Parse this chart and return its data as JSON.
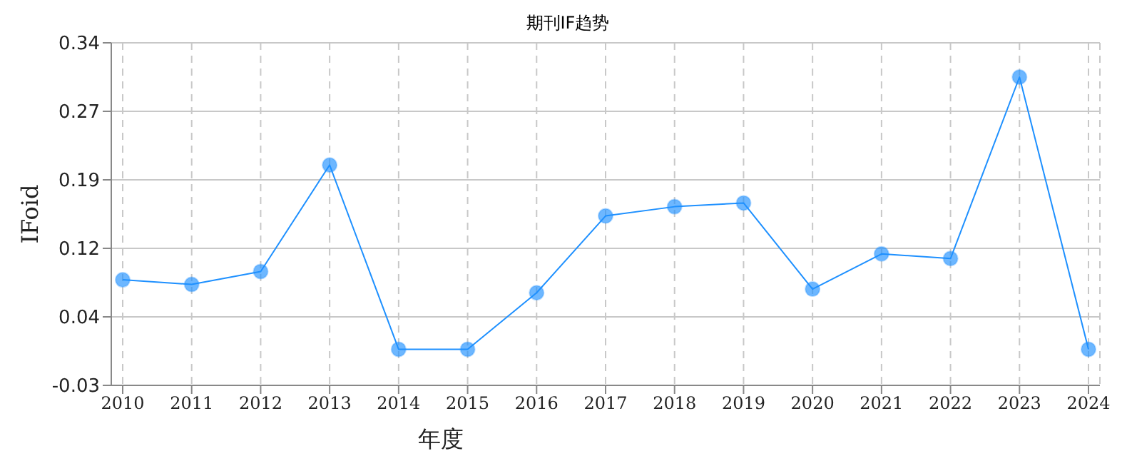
{
  "chart_data": {
    "type": "line",
    "title": "期刊IF趋势",
    "xlabel": "年度",
    "ylabel": "IFoid",
    "categories": [
      "2010",
      "2011",
      "2012",
      "2013",
      "2014",
      "2015",
      "2016",
      "2017",
      "2018",
      "2019",
      "2020",
      "2021",
      "2022",
      "2023",
      "2024"
    ],
    "series": [
      {
        "color": "#1e90ff",
        "values": [
          0.084,
          0.079,
          0.093,
          0.208,
          0.009,
          0.009,
          0.07,
          0.153,
          0.163,
          0.167,
          0.074,
          0.112,
          0.107,
          0.303,
          0.009
        ]
      }
    ],
    "ylim": [
      -0.03,
      0.34
    ],
    "yticks": [
      {
        "value": -0.03,
        "label": "-0.03"
      },
      {
        "value": 0.044,
        "label": "0.04"
      },
      {
        "value": 0.118,
        "label": "0.12"
      },
      {
        "value": 0.192,
        "label": "0.19"
      },
      {
        "value": 0.266,
        "label": "0.27"
      },
      {
        "value": 0.34,
        "label": "0.34"
      }
    ],
    "grid": true,
    "marker": "circle",
    "line_style": "solid",
    "legend": false
  }
}
